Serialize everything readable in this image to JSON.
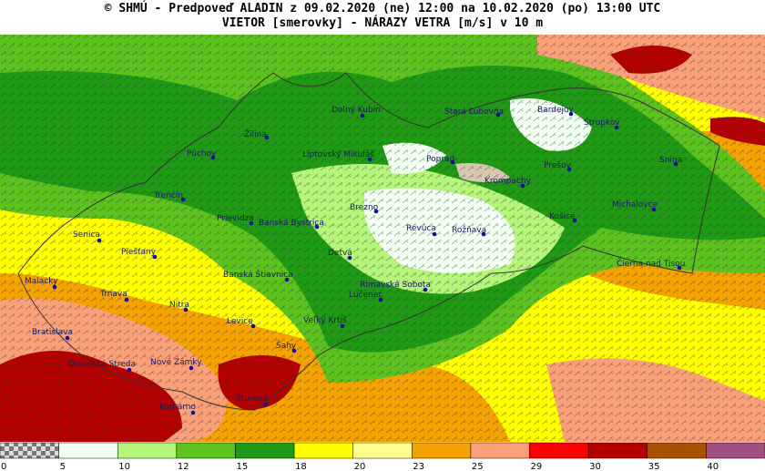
{
  "header": {
    "line1": "© SHMÚ - Predpoveď ALADIN z 09.02.2020 (ne) 12:00 na 10.02.2020 (po) 13:00 UTC",
    "line2": "VIETOR [smerovky] - NÁRAZY VETRA [m/s] v 10 m"
  },
  "cities": [
    "Dolný Kubín",
    "Stará Ľubovňa",
    "Bardejov",
    "Stropkov",
    "Žilina",
    "Púchov",
    "Liptovský Mikuláš",
    "Poprad",
    "Prešov",
    "Snina",
    "Krompachy",
    "Trenčín",
    "Michalovce",
    "Brezno",
    "Prievidza",
    "Banská Bystrica",
    "Revúca",
    "Rožňava",
    "Košice",
    "Senica",
    "Piešťany",
    "Detva",
    "Čierna nad Tisou",
    "Banská Štiavnica",
    "Malacky",
    "Rimavská Sobota",
    "Trnava",
    "Lučenec",
    "Nitra",
    "Levice",
    "Veľký Krtíš",
    "Bratislava",
    "Šahy",
    "Dunajská Streda",
    "Nové Zámky",
    "Štúrovo",
    "Komárno"
  ],
  "legend": {
    "labels": [
      0,
      5,
      10,
      12,
      15,
      18,
      20,
      23,
      25,
      29,
      30,
      35,
      40
    ],
    "colors": [
      "checker",
      "#f0fff0",
      "#b4f57a",
      "#5cc21e",
      "#1e9a14",
      "#ffff00",
      "#ffff8c",
      "#f5a300",
      "#faa078",
      "#fa0000",
      "#b40000",
      "#aa5000",
      "#a05080"
    ]
  }
}
